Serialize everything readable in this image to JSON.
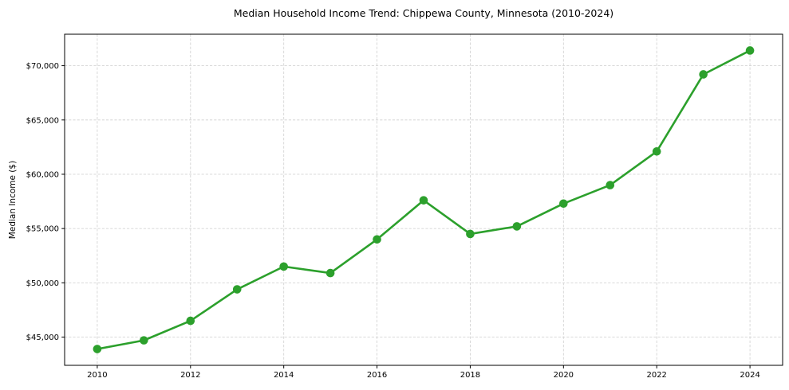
{
  "chart_data": {
    "type": "line",
    "title": "Median Household Income Trend: Chippewa County, Minnesota (2010-2024)",
    "xlabel": "",
    "ylabel": "Median Income ($)",
    "x": [
      2010,
      2011,
      2012,
      2013,
      2014,
      2015,
      2016,
      2017,
      2018,
      2019,
      2020,
      2021,
      2022,
      2023,
      2024
    ],
    "values": [
      43900,
      44700,
      46500,
      49400,
      51500,
      50900,
      54000,
      57600,
      54500,
      55200,
      57300,
      59000,
      62100,
      69200,
      71400
    ],
    "series_name": "Median Household Income",
    "xlim": [
      2009.3,
      2024.7
    ],
    "ylim": [
      42400,
      72900
    ],
    "xticks": {
      "values": [
        2010,
        2012,
        2014,
        2016,
        2018,
        2020,
        2022,
        2024
      ],
      "labels": [
        "2010",
        "2012",
        "2014",
        "2016",
        "2018",
        "2020",
        "2022",
        "2024"
      ]
    },
    "yticks": {
      "values": [
        45000,
        50000,
        55000,
        60000,
        65000,
        70000
      ],
      "labels": [
        "$45,000",
        "$50,000",
        "$55,000",
        "$60,000",
        "$65,000",
        "$70,000"
      ]
    },
    "grid": true,
    "grid_style": "dashed",
    "legend": "none",
    "colors": {
      "line": "#2ca02c",
      "marker": "#2ca02c",
      "grid": "#d4d4d4",
      "frame": "#000000",
      "background": "#ffffff"
    }
  }
}
